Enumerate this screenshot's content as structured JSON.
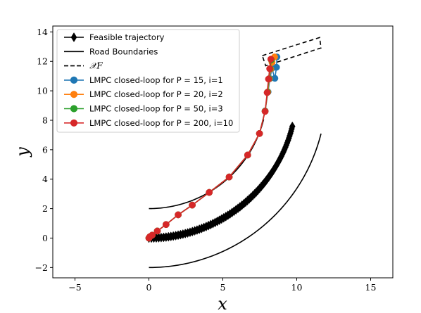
{
  "chart_data": {
    "type": "line",
    "xlabel": "x",
    "ylabel": "y",
    "xlim": [
      -6.5,
      16.5
    ],
    "ylim": [
      -2.7,
      14.4
    ],
    "xticks": [
      -5,
      0,
      5,
      10,
      15
    ],
    "yticks": [
      -2,
      0,
      2,
      4,
      6,
      8,
      10,
      12,
      14
    ],
    "xtick_labels": [
      "−5",
      "0",
      "5",
      "10",
      "15"
    ],
    "ytick_labels": [
      "−2",
      "0",
      "2",
      "4",
      "6",
      "8",
      "10",
      "12",
      "14"
    ],
    "grid": false,
    "legend_position": "top-left",
    "legend": [
      {
        "label": "Feasible trajectory",
        "style": "line-diamond",
        "color": "#000000"
      },
      {
        "label": "Road Boundaries",
        "style": "line",
        "color": "#000000"
      },
      {
        "label": "𝒳F",
        "style": "dashed",
        "color": "#000000"
      },
      {
        "label": "LMPC closed-loop for P = 15, i=1",
        "style": "line-circle",
        "color": "#1f77b4"
      },
      {
        "label": "LMPC closed-loop for P = 20, i=2",
        "style": "line-circle",
        "color": "#ff7f0e"
      },
      {
        "label": "LMPC closed-loop for P = 50, i=3",
        "style": "line-circle",
        "color": "#2ca02c"
      },
      {
        "label": "LMPC closed-loop for P = 200, i=10",
        "style": "line-circle",
        "color": "#d62728"
      }
    ],
    "road": {
      "center": [
        0,
        10
      ],
      "inner_radius": 8,
      "outer_radius": 12,
      "end_angle_deg": 76
    },
    "terminal_set": {
      "corners": [
        [
          7.67,
          12.39
        ],
        [
          11.55,
          13.62
        ],
        [
          11.64,
          12.91
        ],
        [
          7.9,
          11.7
        ]
      ]
    },
    "feasible_trajectory": {
      "radius": 10,
      "center": [
        0,
        10
      ],
      "start_angle_deg": 0,
      "end_angle_deg": 76,
      "n_markers": 80
    },
    "series": [
      {
        "name": "LMPC closed-loop for P = 15, i=1",
        "color": "#1f77b4",
        "x": [
          0.0,
          0.06,
          0.22,
          0.57,
          1.16,
          1.98,
          2.93,
          4.08,
          5.43,
          6.68,
          7.48,
          7.86,
          8.06,
          8.19,
          8.32,
          8.52,
          8.63,
          8.66
        ],
        "y": [
          0.0,
          0.09,
          0.2,
          0.48,
          0.92,
          1.58,
          2.24,
          3.1,
          4.15,
          5.64,
          7.1,
          8.63,
          9.93,
          10.83,
          11.52,
          10.85,
          11.6,
          12.3
        ]
      },
      {
        "name": "LMPC closed-loop for P = 20, i=2",
        "color": "#ff7f0e",
        "x": [
          0.0,
          0.06,
          0.22,
          0.57,
          1.16,
          1.98,
          2.93,
          4.08,
          5.43,
          6.68,
          7.48,
          7.86,
          8.04,
          8.15,
          8.24,
          8.33,
          8.5
        ],
        "y": [
          0.0,
          0.09,
          0.2,
          0.48,
          0.92,
          1.58,
          2.24,
          3.1,
          4.15,
          5.64,
          7.1,
          8.62,
          9.92,
          10.82,
          11.48,
          11.92,
          12.3
        ]
      },
      {
        "name": "LMPC closed-loop for P = 50, i=3",
        "color": "#2ca02c",
        "x": [
          0.0,
          0.06,
          0.22,
          0.57,
          1.16,
          1.98,
          2.93,
          4.08,
          5.43,
          6.68,
          7.48,
          7.86,
          8.02,
          8.12,
          8.2,
          8.28
        ],
        "y": [
          0.0,
          0.09,
          0.2,
          0.48,
          0.92,
          1.58,
          2.24,
          3.1,
          4.15,
          5.64,
          7.1,
          8.62,
          9.9,
          10.82,
          11.5,
          12.1
        ]
      },
      {
        "name": "LMPC closed-loop for P = 200, i=10",
        "color": "#d62728",
        "x": [
          0.0,
          0.06,
          0.22,
          0.57,
          1.16,
          1.98,
          2.93,
          4.08,
          5.43,
          6.68,
          7.48,
          7.86,
          8.0,
          8.09,
          8.17,
          8.25
        ],
        "y": [
          0.0,
          0.09,
          0.2,
          0.48,
          0.92,
          1.58,
          2.24,
          3.1,
          4.15,
          5.64,
          7.1,
          8.6,
          9.88,
          10.8,
          11.5,
          12.15
        ]
      }
    ]
  }
}
